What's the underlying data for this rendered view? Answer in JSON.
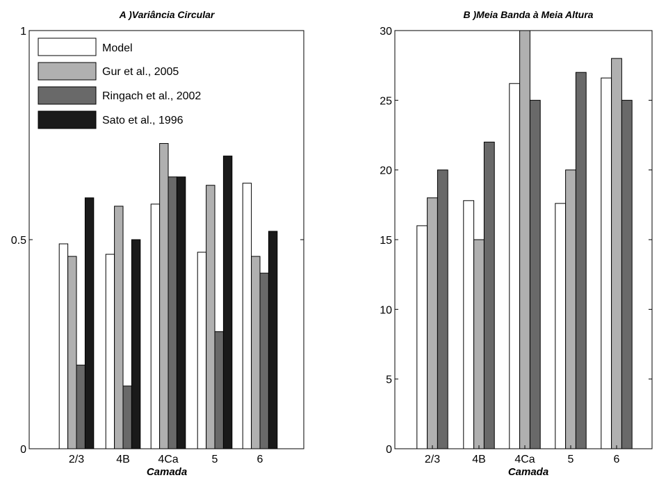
{
  "chart_data": [
    {
      "type": "bar",
      "title": "A )Variância Circular",
      "xlabel": "Camada",
      "ylabel": "",
      "ylim": [
        0,
        1
      ],
      "yticks": [
        "0",
        "0.5",
        "1"
      ],
      "categories": [
        "2/3",
        "4B",
        "4Ca",
        "5",
        "6"
      ],
      "series": [
        {
          "name": "Model",
          "color": "#ffffff",
          "values": [
            0.49,
            0.465,
            0.585,
            0.47,
            0.635
          ]
        },
        {
          "name": "Gur et al., 2005",
          "color": "#b0b0b0",
          "values": [
            0.46,
            0.58,
            0.73,
            0.63,
            0.46
          ]
        },
        {
          "name": "Ringach et al., 2002",
          "color": "#696969",
          "values": [
            0.2,
            0.15,
            0.65,
            0.28,
            0.42
          ]
        },
        {
          "name": "Sato et al., 1996",
          "color": "#1a1a1a",
          "values": [
            0.6,
            0.5,
            0.65,
            0.7,
            0.52
          ]
        }
      ],
      "legend": "top-left"
    },
    {
      "type": "bar",
      "title": "B )Meia Banda à Meia Altura",
      "xlabel": "Camada",
      "ylabel": "",
      "ylim": [
        0,
        30
      ],
      "yticks": [
        "0",
        "5",
        "10",
        "15",
        "20",
        "25",
        "30"
      ],
      "categories": [
        "2/3",
        "4B",
        "4Ca",
        "5",
        "6"
      ],
      "series": [
        {
          "color": "#ffffff",
          "values": [
            16,
            17.8,
            26.2,
            17.6,
            26.6
          ]
        },
        {
          "color": "#b0b0b0",
          "values": [
            18,
            15,
            30,
            20,
            28
          ]
        },
        {
          "color": "#696969",
          "values": [
            20,
            22,
            25,
            27,
            25
          ]
        }
      ]
    }
  ]
}
